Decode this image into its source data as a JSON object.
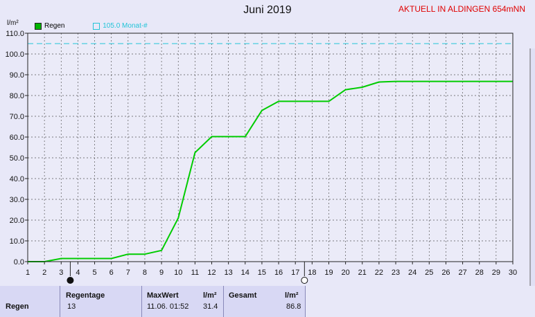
{
  "header": {
    "title": "Juni 2019",
    "station": "AKTUELL IN ALDINGEN 654mNN",
    "unit": "l/m²"
  },
  "legend": [
    {
      "label": "Regen",
      "color": "#00b400",
      "filled": true
    },
    {
      "label": "105.0 Monat-#",
      "color": "#22c4d8",
      "filled": false
    }
  ],
  "chart_data": {
    "type": "line",
    "title": "Juni 2019",
    "ylabel": "l/m²",
    "xlabel": "",
    "xlim": [
      1,
      30
    ],
    "ylim": [
      0,
      110
    ],
    "x_ticks": [
      1,
      2,
      3,
      4,
      5,
      6,
      7,
      8,
      9,
      10,
      11,
      12,
      13,
      14,
      15,
      16,
      17,
      18,
      19,
      20,
      21,
      22,
      23,
      24,
      25,
      26,
      27,
      28,
      29,
      30
    ],
    "y_ticks": [
      "0.0",
      "10.0",
      "20.0",
      "30.0",
      "40.0",
      "50.0",
      "60.0",
      "70.0",
      "80.0",
      "90.0",
      "100.0",
      "110.0"
    ],
    "grid": true,
    "legend_position": "top-left",
    "series": [
      {
        "name": "Regen",
        "color": "#00cc00",
        "x": [
          1,
          2,
          3,
          4,
          5,
          6,
          7,
          8,
          9,
          10,
          11,
          12,
          13,
          14,
          15,
          16,
          17,
          18,
          19,
          20,
          21,
          22,
          23,
          24,
          25,
          26,
          27,
          28,
          29,
          30
        ],
        "values": [
          0,
          0,
          1.5,
          1.5,
          1.5,
          1.5,
          3.6,
          3.6,
          5.4,
          21,
          52.5,
          60.2,
          60.2,
          60.2,
          72.8,
          77.2,
          77.2,
          77.2,
          77.2,
          82.8,
          84,
          86.5,
          86.8,
          86.8,
          86.8,
          86.8,
          86.8,
          86.8,
          86.8,
          86.8
        ]
      }
    ],
    "reference_line": {
      "name": "105.0 Monat-#",
      "value": 105.0,
      "color": "#22c4d8"
    }
  },
  "stats": {
    "row_label": "Regen",
    "regentage_header": "Regentage",
    "regentage_value": "13",
    "maxwert_header": "MaxWert",
    "maxwert_unit": "l/m²",
    "maxwert_date": "11.06.  01:52",
    "maxwert_value": "31.4",
    "gesamt_header": "Gesamt",
    "gesamt_unit": "l/m²",
    "gesamt_value": "86.8"
  }
}
